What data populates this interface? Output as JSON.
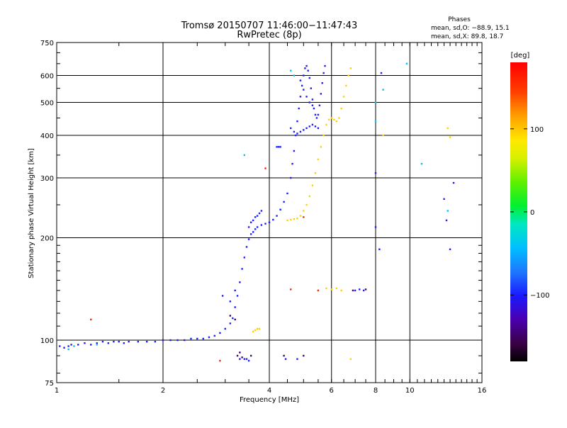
{
  "title": {
    "line1": "Tromsø 20150707 11:46:00−11:47:43",
    "line2": "RwPretec (8p)"
  },
  "phase_info": {
    "heading": "Phases",
    "line_o": "mean, sd,O: −88.9, 15.1",
    "line_x": "mean, sd,X:  89.8, 18.7"
  },
  "colorbar": {
    "label": "[deg]",
    "ticks": [
      "100",
      "0",
      "−100"
    ],
    "tick_values": [
      100,
      0,
      -100
    ],
    "range": [
      -180,
      180
    ]
  },
  "chart_data": {
    "type": "scatter",
    "xlabel": "Frequency [MHz]",
    "ylabel": "Stationary phase Virtual Height [km]",
    "x_scale": "log2",
    "y_scale": "log",
    "xlim": [
      1,
      16
    ],
    "ylim": [
      75,
      750
    ],
    "x_ticks": [
      1,
      2,
      4,
      6,
      8,
      10,
      16
    ],
    "x_tick_labels": [
      "1",
      "2",
      "4",
      "6",
      "8",
      "10",
      "16"
    ],
    "y_ticks": [
      75,
      100,
      200,
      300,
      400,
      500,
      600,
      750
    ],
    "y_tick_labels": [
      "75",
      "100",
      "200",
      "300",
      "400",
      "500",
      "600",
      "750"
    ],
    "grid": true,
    "series": [
      {
        "role": "O-mode",
        "phase_deg": -100,
        "points": [
          [
            1.02,
            96
          ],
          [
            1.05,
            95
          ],
          [
            1.08,
            96
          ],
          [
            1.1,
            97
          ],
          [
            1.15,
            97
          ],
          [
            1.2,
            98
          ],
          [
            1.25,
            97
          ],
          [
            1.3,
            98
          ],
          [
            1.35,
            99
          ],
          [
            1.4,
            98
          ],
          [
            1.45,
            99
          ],
          [
            1.5,
            99
          ],
          [
            1.55,
            98
          ],
          [
            1.6,
            99
          ],
          [
            1.7,
            99
          ],
          [
            1.8,
            99
          ],
          [
            1.9,
            99
          ],
          [
            2.0,
            100
          ],
          [
            2.1,
            100
          ],
          [
            2.2,
            100
          ],
          [
            2.3,
            100
          ],
          [
            2.4,
            101
          ],
          [
            2.5,
            101
          ],
          [
            2.6,
            101
          ],
          [
            2.7,
            102
          ],
          [
            2.8,
            103
          ],
          [
            2.9,
            105
          ],
          [
            3.0,
            108
          ],
          [
            3.1,
            112
          ],
          [
            3.15,
            116
          ],
          [
            3.2,
            125
          ],
          [
            3.25,
            135
          ],
          [
            3.3,
            148
          ],
          [
            3.35,
            162
          ],
          [
            3.4,
            175
          ],
          [
            3.45,
            188
          ],
          [
            3.5,
            198
          ],
          [
            3.55,
            205
          ],
          [
            3.6,
            208
          ],
          [
            3.65,
            212
          ],
          [
            3.7,
            215
          ],
          [
            3.8,
            218
          ],
          [
            3.9,
            220
          ],
          [
            4.0,
            222
          ],
          [
            4.1,
            226
          ],
          [
            4.2,
            232
          ],
          [
            4.3,
            242
          ],
          [
            4.4,
            255
          ],
          [
            4.5,
            270
          ],
          [
            4.6,
            300
          ],
          [
            4.65,
            330
          ],
          [
            4.7,
            360
          ],
          [
            4.75,
            400
          ],
          [
            4.8,
            440
          ],
          [
            4.85,
            480
          ],
          [
            4.9,
            520
          ],
          [
            4.95,
            560
          ],
          [
            5.0,
            600
          ],
          [
            5.05,
            630
          ],
          [
            5.1,
            640
          ],
          [
            5.15,
            620
          ],
          [
            5.2,
            590
          ],
          [
            5.25,
            550
          ],
          [
            5.3,
            510
          ],
          [
            5.35,
            480
          ],
          [
            5.4,
            460
          ],
          [
            5.45,
            450
          ],
          [
            5.5,
            460
          ],
          [
            5.55,
            490
          ],
          [
            5.6,
            530
          ],
          [
            5.65,
            570
          ],
          [
            5.7,
            610
          ],
          [
            5.75,
            640
          ],
          [
            3.5,
            215
          ],
          [
            3.55,
            222
          ],
          [
            3.6,
            225
          ],
          [
            3.65,
            230
          ],
          [
            3.7,
            232
          ],
          [
            3.75,
            236
          ],
          [
            3.8,
            240
          ],
          [
            4.6,
            420
          ],
          [
            4.7,
            410
          ],
          [
            4.8,
            405
          ],
          [
            4.9,
            410
          ],
          [
            5.0,
            415
          ],
          [
            5.1,
            420
          ],
          [
            5.2,
            425
          ],
          [
            5.3,
            430
          ],
          [
            5.4,
            425
          ],
          [
            5.5,
            420
          ],
          [
            4.9,
            580
          ],
          [
            5.0,
            545
          ],
          [
            5.1,
            520
          ],
          [
            5.2,
            500
          ],
          [
            5.3,
            490
          ],
          [
            3.3,
            88
          ],
          [
            3.4,
            88
          ],
          [
            3.45,
            88
          ],
          [
            3.5,
            87
          ],
          [
            4.45,
            88
          ],
          [
            4.8,
            88
          ],
          [
            2.95,
            135
          ],
          [
            3.1,
            130
          ],
          [
            3.2,
            140
          ],
          [
            4.2,
            370
          ],
          [
            4.25,
            370
          ],
          [
            4.3,
            370
          ],
          [
            7.0,
            140
          ],
          [
            7.2,
            141
          ],
          [
            7.4,
            140
          ],
          [
            8.3,
            610
          ],
          [
            8.0,
            310
          ],
          [
            8.0,
            215
          ],
          [
            8.2,
            185
          ],
          [
            12.5,
            260
          ],
          [
            12.7,
            225
          ],
          [
            13.0,
            185
          ],
          [
            13.3,
            290
          ]
        ]
      },
      {
        "role": "X-mode",
        "phase_deg": 95,
        "points": [
          [
            4.5,
            225
          ],
          [
            4.6,
            226
          ],
          [
            4.7,
            227
          ],
          [
            4.8,
            228
          ],
          [
            4.9,
            232
          ],
          [
            5.0,
            240
          ],
          [
            5.1,
            250
          ],
          [
            5.2,
            265
          ],
          [
            5.3,
            285
          ],
          [
            5.4,
            310
          ],
          [
            5.5,
            340
          ],
          [
            5.6,
            370
          ],
          [
            5.7,
            400
          ],
          [
            5.8,
            430
          ],
          [
            5.9,
            445
          ],
          [
            6.0,
            450
          ],
          [
            6.1,
            445
          ],
          [
            6.2,
            440
          ],
          [
            6.3,
            450
          ],
          [
            6.4,
            480
          ],
          [
            6.5,
            520
          ],
          [
            6.6,
            560
          ],
          [
            6.7,
            600
          ],
          [
            6.8,
            630
          ],
          [
            3.6,
            106
          ],
          [
            3.65,
            107
          ],
          [
            3.7,
            108
          ],
          [
            3.75,
            108
          ],
          [
            5.8,
            142
          ],
          [
            6.0,
            141
          ],
          [
            6.2,
            142
          ],
          [
            6.4,
            140
          ],
          [
            12.8,
            420
          ],
          [
            13.0,
            395
          ],
          [
            8.4,
            400
          ],
          [
            6.8,
            88
          ]
        ]
      },
      {
        "role": "scatter",
        "phase_deg": -40,
        "points": [
          [
            1.08,
            94
          ],
          [
            1.12,
            96
          ],
          [
            1.3,
            97
          ],
          [
            4.6,
            620
          ],
          [
            4.7,
            600
          ],
          [
            8.0,
            500
          ],
          [
            8.0,
            440
          ],
          [
            8.4,
            545
          ],
          [
            10.8,
            330
          ],
          [
            9.8,
            650
          ],
          [
            12.8,
            240
          ],
          [
            3.4,
            350
          ]
        ]
      },
      {
        "role": "scatter",
        "phase_deg": 160,
        "points": [
          [
            1.25,
            115
          ],
          [
            2.9,
            87
          ],
          [
            3.9,
            320
          ],
          [
            5.0,
            230
          ],
          [
            4.6,
            141
          ],
          [
            5.5,
            140
          ]
        ]
      },
      {
        "role": "scatter",
        "phase_deg": -150,
        "points": [
          [
            3.1,
            118
          ],
          [
            3.2,
            115
          ],
          [
            3.3,
            92
          ],
          [
            3.25,
            90
          ],
          [
            3.35,
            89
          ],
          [
            3.55,
            90
          ],
          [
            5.0,
            90
          ],
          [
            6.9,
            140
          ],
          [
            7.5,
            141
          ],
          [
            4.4,
            90
          ]
        ]
      }
    ]
  }
}
